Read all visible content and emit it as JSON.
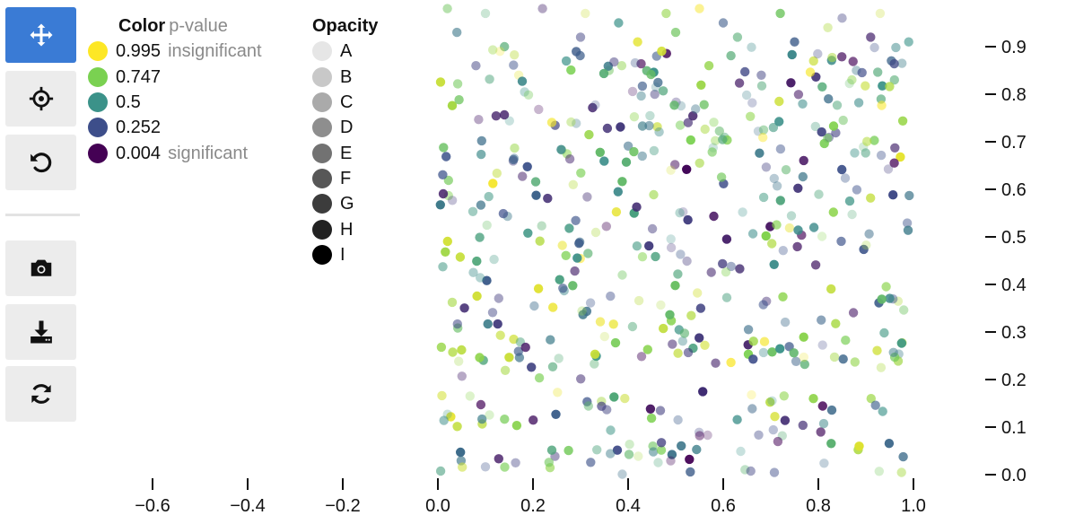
{
  "toolbar": {
    "buttons": [
      {
        "name": "pan-button",
        "icon": "move-arrows-icon",
        "active": true
      },
      {
        "name": "box-select-button",
        "icon": "crosshair-icon",
        "active": false
      },
      {
        "name": "reset-button",
        "icon": "undo-icon",
        "active": false
      },
      {
        "name": "screenshot-button",
        "icon": "camera-icon",
        "active": false
      },
      {
        "name": "download-button",
        "icon": "download-icon",
        "active": false
      },
      {
        "name": "refresh-button",
        "icon": "refresh-icon",
        "active": false
      }
    ],
    "active_color": "#3a7bd5",
    "button_color": "#ececec"
  },
  "legend_color": {
    "title": "Color",
    "subtitle": "p-value",
    "items": [
      {
        "label": "0.995",
        "note": "insignificant",
        "color": "#fde725"
      },
      {
        "label": "0.747",
        "note": "",
        "color": "#7ad151"
      },
      {
        "label": "0.5",
        "note": "",
        "color": "#3b9289"
      },
      {
        "label": "0.252",
        "note": "",
        "color": "#3d4e8a"
      },
      {
        "label": "0.004",
        "note": "significant",
        "color": "#440154"
      }
    ]
  },
  "legend_opacity": {
    "title": "Opacity",
    "items": [
      {
        "label": "A",
        "color": "#e6e6e6"
      },
      {
        "label": "B",
        "color": "#c8c8c8"
      },
      {
        "label": "C",
        "color": "#aaaaaa"
      },
      {
        "label": "D",
        "color": "#8e8e8e"
      },
      {
        "label": "E",
        "color": "#727272"
      },
      {
        "label": "F",
        "color": "#575757"
      },
      {
        "label": "G",
        "color": "#3c3c3c"
      },
      {
        "label": "H",
        "color": "#222222"
      },
      {
        "label": "I",
        "color": "#000000"
      }
    ]
  },
  "chart_data": {
    "type": "scatter",
    "title": "",
    "xlabel": "",
    "ylabel": "",
    "xlim": [
      -0.68,
      1.08
    ],
    "ylim": [
      -0.01,
      0.99
    ],
    "x_ticks": [
      "−0.6",
      "−0.4",
      "−0.2",
      "0.0",
      "0.2",
      "0.4",
      "0.6",
      "0.8",
      "1.0"
    ],
    "y_ticks": [
      "0.0",
      "0.1",
      "0.2",
      "0.3",
      "0.4",
      "0.5",
      "0.6",
      "0.7",
      "0.8",
      "0.9"
    ],
    "grid": false,
    "y_axis_side": "right",
    "color_encoding": "p-value (viridis)",
    "opacity_encoding": "category A–I",
    "n_points": 520,
    "points": [
      [
        0.02,
        0.98,
        0.7,
        0.5
      ],
      [
        0.1,
        0.97,
        0.6,
        0.3
      ],
      [
        0.22,
        0.98,
        0.1,
        0.4
      ],
      [
        0.31,
        0.97,
        0.9,
        0.3
      ],
      [
        0.38,
        0.95,
        0.5,
        0.7
      ],
      [
        0.48,
        0.97,
        0.8,
        0.6
      ],
      [
        0.55,
        0.98,
        0.99,
        0.5
      ],
      [
        0.6,
        0.95,
        0.3,
        0.6
      ],
      [
        0.72,
        0.97,
        0.7,
        0.8
      ],
      [
        0.85,
        0.96,
        0.2,
        0.4
      ],
      [
        0.93,
        0.97,
        0.9,
        0.3
      ],
      [
        0.04,
        0.93,
        0.4,
        0.6
      ],
      [
        0.14,
        0.9,
        0.6,
        0.7
      ],
      [
        0.3,
        0.92,
        0.2,
        0.5
      ],
      [
        0.42,
        0.91,
        0.95,
        0.8
      ],
      [
        0.5,
        0.93,
        0.7,
        0.7
      ],
      [
        0.63,
        0.92,
        0.6,
        0.6
      ],
      [
        0.75,
        0.91,
        0.3,
        0.8
      ],
      [
        0.82,
        0.94,
        0.85,
        0.4
      ],
      [
        0.91,
        0.92,
        0.1,
        0.7
      ],
      [
        0.99,
        0.91,
        0.5,
        0.6
      ],
      [
        0.08,
        0.86,
        0.2,
        0.5
      ],
      [
        0.17,
        0.84,
        0.95,
        0.3
      ],
      [
        0.27,
        0.87,
        0.5,
        0.7
      ],
      [
        0.36,
        0.85,
        0.7,
        0.5
      ],
      [
        0.46,
        0.88,
        0.3,
        0.6
      ],
      [
        0.57,
        0.86,
        0.8,
        0.8
      ],
      [
        0.68,
        0.84,
        0.2,
        0.5
      ],
      [
        0.79,
        0.87,
        0.9,
        0.7
      ],
      [
        0.88,
        0.85,
        0.4,
        0.4
      ],
      [
        0.96,
        0.83,
        0.6,
        0.6
      ]
    ]
  }
}
